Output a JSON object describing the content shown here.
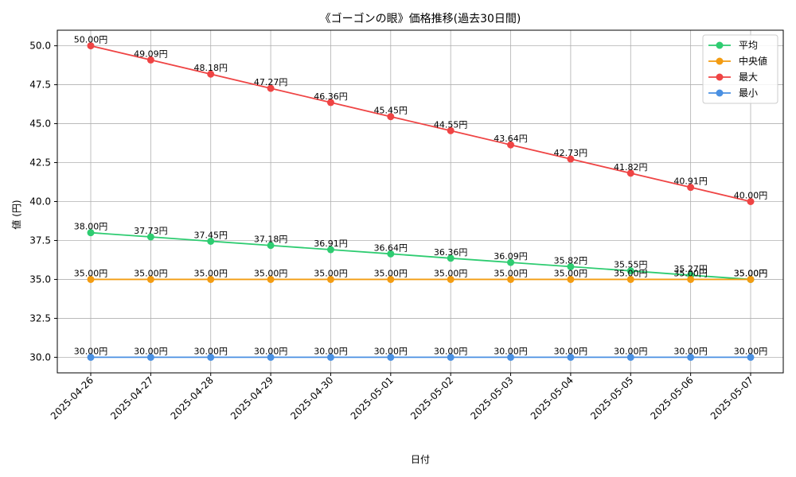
{
  "chart_data": {
    "type": "line",
    "title": "《ゴーゴンの眼》価格推移(過去30日間)",
    "xlabel": "日付",
    "ylabel": "値 (円)",
    "ylim": [
      29.0,
      51.0
    ],
    "yticks": [
      "30.0",
      "32.5",
      "35.0",
      "37.5",
      "40.0",
      "42.5",
      "45.0",
      "47.5",
      "50.0"
    ],
    "grid": true,
    "legend_position": "top-right",
    "label_suffix": "円",
    "x": [
      "2025-04-26",
      "2025-04-27",
      "2025-04-28",
      "2025-04-29",
      "2025-04-30",
      "2025-05-01",
      "2025-05-02",
      "2025-05-03",
      "2025-05-04",
      "2025-05-05",
      "2025-05-06",
      "2025-05-07"
    ],
    "series": [
      {
        "name": "平均",
        "color": "#2ecc71",
        "values": [
          38.0,
          37.73,
          37.45,
          37.18,
          36.91,
          36.64,
          36.36,
          36.09,
          35.82,
          35.55,
          35.27,
          35.0
        ]
      },
      {
        "name": "中央値",
        "color": "#f39c12",
        "values": [
          35.0,
          35.0,
          35.0,
          35.0,
          35.0,
          35.0,
          35.0,
          35.0,
          35.0,
          35.0,
          35.0,
          35.0
        ]
      },
      {
        "name": "最大",
        "color": "#ef4444",
        "values": [
          50.0,
          49.09,
          48.18,
          47.27,
          46.36,
          45.45,
          44.55,
          43.64,
          42.73,
          41.82,
          40.91,
          40.0
        ]
      },
      {
        "name": "最小",
        "color": "#4a90e2",
        "values": [
          30.0,
          30.0,
          30.0,
          30.0,
          30.0,
          30.0,
          30.0,
          30.0,
          30.0,
          30.0,
          30.0,
          30.0
        ]
      }
    ]
  }
}
